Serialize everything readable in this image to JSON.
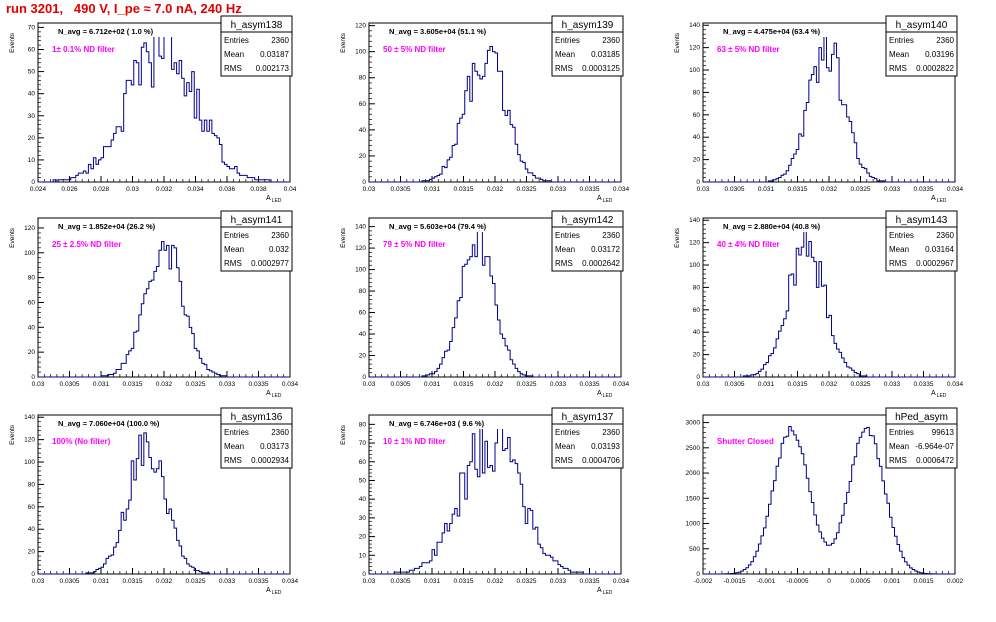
{
  "page_title": "run 3201,   490 V, I_pe ≈ 7.0 nA, 240 Hz",
  "colors": {
    "histogram": "#00008b",
    "filter_label": "#ff00ff",
    "title": "#e00000"
  },
  "chart_data": [
    {
      "type": "histogram",
      "name": "h_asym138",
      "title": "N_avg = 6.712e+02 ( 1.0 %)",
      "filter_label": "1± 0.1% ND filter",
      "stats": {
        "Entries": "2360",
        "Mean": "0.03187",
        "RMS": "0.002173"
      },
      "xlabel": "A_LED",
      "ylabel": "Events",
      "xlim": [
        0.024,
        0.04
      ],
      "ylim": [
        0,
        72
      ],
      "xticks": [
        "0.024",
        "0.026",
        "0.028",
        "0.03",
        "0.032",
        "0.034",
        "0.036",
        "0.038",
        "0.04"
      ],
      "yticks": [
        "0",
        "10",
        "20",
        "30",
        "40",
        "50",
        "60",
        "70"
      ],
      "mean": 0.03187,
      "sigma": 0.002173,
      "peak": 60,
      "noise": 0.28,
      "seed": 138
    },
    {
      "type": "histogram",
      "name": "h_asym139",
      "title": "N_avg = 3.605e+04 (51.1 %)",
      "filter_label": "50 ± 5% ND filter",
      "stats": {
        "Entries": "2360",
        "Mean": "0.03185",
        "RMS": "0.0003125"
      },
      "xlabel": "A_LED",
      "ylabel": "Events",
      "xlim": [
        0.03,
        0.034
      ],
      "ylim": [
        0,
        122
      ],
      "xticks": [
        "0.03",
        "0.0305",
        "0.031",
        "0.0315",
        "0.032",
        "0.0325",
        "0.033",
        "0.0335",
        "0.034"
      ],
      "yticks": [
        "0",
        "20",
        "40",
        "60",
        "80",
        "100",
        "120"
      ],
      "mean": 0.03185,
      "sigma": 0.0003125,
      "peak": 100,
      "noise": 0.2,
      "seed": 139
    },
    {
      "type": "histogram",
      "name": "h_asym140",
      "title": "N_avg = 4.475e+04 (63.4 %)",
      "filter_label": "63 ± 5% ND filter",
      "stats": {
        "Entries": "2360",
        "Mean": "0.03196",
        "RMS": "0.0002822"
      },
      "xlabel": "A_LED",
      "ylabel": "Events",
      "xlim": [
        0.03,
        0.034
      ],
      "ylim": [
        0,
        142
      ],
      "xticks": [
        "0.03",
        "0.0305",
        "0.031",
        "0.0315",
        "0.032",
        "0.0325",
        "0.033",
        "0.0335",
        "0.034"
      ],
      "yticks": [
        "0",
        "20",
        "40",
        "60",
        "80",
        "100",
        "120",
        "140"
      ],
      "mean": 0.03196,
      "sigma": 0.0002822,
      "peak": 120,
      "noise": 0.18,
      "seed": 140
    },
    {
      "type": "histogram",
      "name": "h_asym141",
      "title": "N_avg = 1.852e+04 (26.2 %)",
      "filter_label": "25 ± 2.5% ND filter",
      "stats": {
        "Entries": "2360",
        "Mean": "0.032",
        "RMS": "0.0002977"
      },
      "xlabel": "A_LED",
      "ylabel": "Events",
      "xlim": [
        0.03,
        0.034
      ],
      "ylim": [
        0,
        128
      ],
      "xticks": [
        "0.03",
        "0.0305",
        "0.031",
        "0.0315",
        "0.032",
        "0.0325",
        "0.033",
        "0.0335",
        "0.034"
      ],
      "yticks": [
        "0",
        "20",
        "40",
        "60",
        "80",
        "100",
        "120"
      ],
      "mean": 0.032,
      "sigma": 0.0002977,
      "peak": 112,
      "noise": 0.18,
      "seed": 141
    },
    {
      "type": "histogram",
      "name": "h_asym142",
      "title": "N_avg = 5.603e+04 (79.4 %)",
      "filter_label": "79 ± 5% ND filter",
      "stats": {
        "Entries": "2360",
        "Mean": "0.03172",
        "RMS": "0.0002642"
      },
      "xlabel": "A_LED",
      "ylabel": "Events",
      "xlim": [
        0.03,
        0.034
      ],
      "ylim": [
        0,
        148
      ],
      "xticks": [
        "0.03",
        "0.0305",
        "0.031",
        "0.0315",
        "0.032",
        "0.0325",
        "0.033",
        "0.0335",
        "0.034"
      ],
      "yticks": [
        "0",
        "20",
        "40",
        "60",
        "80",
        "100",
        "120",
        "140"
      ],
      "mean": 0.03172,
      "sigma": 0.0002642,
      "peak": 130,
      "noise": 0.15,
      "seed": 142
    },
    {
      "type": "histogram",
      "name": "h_asym143",
      "title": "N_avg = 2.880e+04 (40.8 %)",
      "filter_label": "40 ± 4% ND filter",
      "stats": {
        "Entries": "2360",
        "Mean": "0.03164",
        "RMS": "0.0002967"
      },
      "xlabel": "A_LED",
      "ylabel": "Events",
      "xlim": [
        0.03,
        0.034
      ],
      "ylim": [
        0,
        142
      ],
      "xticks": [
        "0.03",
        "0.0305",
        "0.031",
        "0.0315",
        "0.032",
        "0.0325",
        "0.033",
        "0.0335",
        "0.034"
      ],
      "yticks": [
        "0",
        "20",
        "40",
        "60",
        "80",
        "100",
        "120",
        "140"
      ],
      "mean": 0.03164,
      "sigma": 0.0002967,
      "peak": 118,
      "noise": 0.2,
      "seed": 143
    },
    {
      "type": "histogram",
      "name": "h_asym136",
      "title": "N_avg = 7.060e+04 (100.0 %)",
      "filter_label": "100% (No filter)",
      "stats": {
        "Entries": "2360",
        "Mean": "0.03173",
        "RMS": "0.0002934"
      },
      "xlabel": "A_LED",
      "ylabel": "Events",
      "xlim": [
        0.03,
        0.034
      ],
      "ylim": [
        0,
        142
      ],
      "xticks": [
        "0.03",
        "0.0305",
        "0.031",
        "0.0315",
        "0.032",
        "0.0325",
        "0.033",
        "0.0335",
        "0.034"
      ],
      "yticks": [
        "0",
        "20",
        "40",
        "60",
        "80",
        "100",
        "120",
        "140"
      ],
      "mean": 0.03173,
      "sigma": 0.0002934,
      "peak": 118,
      "noise": 0.18,
      "seed": 136
    },
    {
      "type": "histogram",
      "name": "h_asym137",
      "title": "N_avg = 6.746e+03 ( 9.6 %)",
      "filter_label": "10 ± 1% ND filter",
      "stats": {
        "Entries": "2360",
        "Mean": "0.03193",
        "RMS": "0.0004706"
      },
      "xlabel": "A_LED",
      "ylabel": "Events",
      "xlim": [
        0.03,
        0.034
      ],
      "ylim": [
        0,
        85
      ],
      "xticks": [
        "0.03",
        "0.0305",
        "0.031",
        "0.0315",
        "0.032",
        "0.0325",
        "0.033",
        "0.0335",
        "0.034"
      ],
      "yticks": [
        "0",
        "10",
        "20",
        "30",
        "40",
        "50",
        "60",
        "70",
        "80"
      ],
      "mean": 0.03193,
      "sigma": 0.0004706,
      "peak": 72,
      "noise": 0.25,
      "seed": 137
    },
    {
      "type": "histogram",
      "name": "hPed_asym",
      "title": "",
      "filter_label": "Shutter Closed",
      "stats": {
        "Entries": "99613",
        "Mean": "-6.964e-07",
        "RMS": "0.0006472"
      },
      "xlabel": "",
      "ylabel": "",
      "xlim": [
        -0.002,
        0.002
      ],
      "ylim": [
        0,
        3150
      ],
      "xticks": [
        "-0.002",
        "-0.0015",
        "-0.001",
        "-0.0005",
        "0",
        "0.0005",
        "0.001",
        "0.0015",
        "0.002"
      ],
      "yticks": [
        "0",
        "500",
        "1000",
        "1500",
        "2000",
        "2500",
        "3000"
      ],
      "bimodal": true,
      "mean": -0.0006,
      "mean2": 0.0006,
      "sigma": 0.00028,
      "peak": 2850,
      "noise": 0.03,
      "seed": 999
    }
  ]
}
